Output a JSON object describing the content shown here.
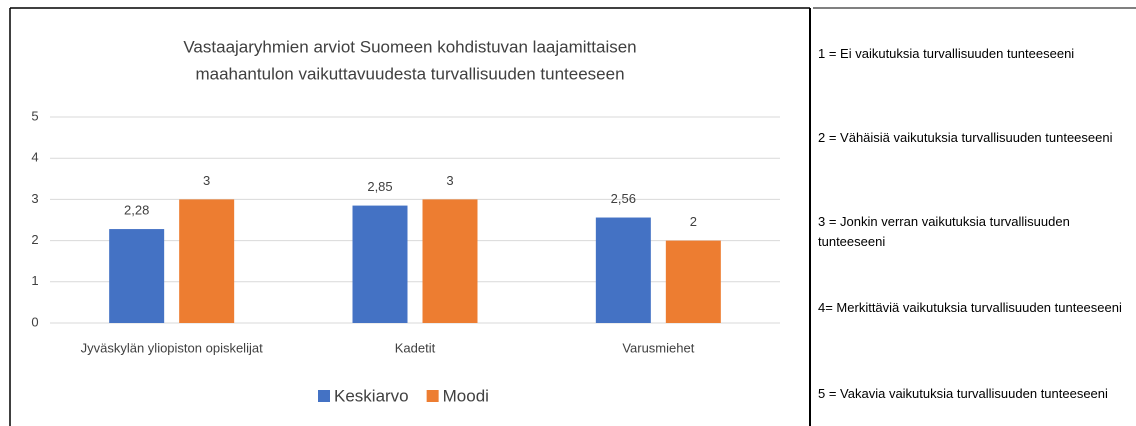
{
  "chart_data": {
    "type": "bar",
    "title": [
      "Vastaajaryhmien arviot Suomeen kohdistuvan laajamittaisen",
      "maahantulon vaikuttavuudesta turvallisuuden tunteeseen"
    ],
    "categories": [
      "Jyväskylän yliopiston opiskelijat",
      "Kadetit",
      "Varusmiehet"
    ],
    "series": [
      {
        "name": "Keskiarvo",
        "color": "#4472c4",
        "values": [
          2.28,
          2.85,
          2.56
        ],
        "value_labels": [
          "2,28",
          "2,85",
          "2,56"
        ]
      },
      {
        "name": "Moodi",
        "color": "#ed7d31",
        "values": [
          3,
          3,
          2
        ]
      }
    ],
    "ylim": [
      0,
      5
    ],
    "yticks": [
      0,
      1,
      2,
      3,
      4,
      5
    ],
    "grid": true,
    "legend": "bottom"
  },
  "scale_notes": [
    "1 = Ei vaikutuksia turvallisuuden tunteeseeni",
    "2 = Vähäisiä vaikutuksia turvallisuuden tunteeseeni",
    "3 = Jonkin verran vaikutuksia turvallisuuden tunteeseeni",
    "4= Merkittäviä vaikutuksia turvallisuuden tunteeseeni",
    "5 = Vakavia vaikutuksia turvallisuuden tunteeseeni"
  ]
}
